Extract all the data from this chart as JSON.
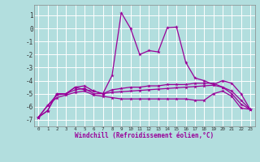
{
  "xlabel": "Windchill (Refroidissement éolien,°C)",
  "background_color": "#b2dede",
  "grid_color": "#ffffff",
  "line_color": "#990099",
  "x_values": [
    0,
    1,
    2,
    3,
    4,
    5,
    6,
    7,
    8,
    9,
    10,
    11,
    12,
    13,
    14,
    15,
    16,
    17,
    18,
    19,
    20,
    21,
    22,
    23
  ],
  "series1": [
    -6.8,
    -6.3,
    -5.0,
    -5.0,
    -4.5,
    -4.4,
    -4.8,
    -5.0,
    -3.6,
    1.2,
    0.0,
    -2.0,
    -1.7,
    -1.8,
    0.05,
    0.1,
    -2.6,
    -3.8,
    -4.0,
    -4.3,
    -4.0,
    -4.2,
    -5.0,
    -6.2
  ],
  "series2": [
    -6.8,
    -6.3,
    -5.0,
    -5.0,
    -4.5,
    -4.7,
    -4.8,
    -5.0,
    -4.7,
    -4.6,
    -4.5,
    -4.5,
    -4.4,
    -4.4,
    -4.3,
    -4.3,
    -4.3,
    -4.2,
    -4.2,
    -4.2,
    -4.5,
    -5.0,
    -5.8,
    -6.2
  ],
  "series3": [
    -6.8,
    -5.9,
    -5.1,
    -5.0,
    -4.7,
    -4.6,
    -5.0,
    -5.0,
    -4.9,
    -4.85,
    -4.8,
    -4.75,
    -4.7,
    -4.65,
    -4.6,
    -4.55,
    -4.5,
    -4.45,
    -4.4,
    -4.35,
    -4.5,
    -4.8,
    -5.5,
    -6.2
  ],
  "series4": [
    -6.8,
    -5.9,
    -5.3,
    -5.1,
    -4.9,
    -4.8,
    -5.1,
    -5.2,
    -5.3,
    -5.4,
    -5.4,
    -5.4,
    -5.4,
    -5.4,
    -5.4,
    -5.4,
    -5.4,
    -5.5,
    -5.5,
    -5.0,
    -4.8,
    -5.2,
    -6.1,
    -6.2
  ],
  "ylim": [
    -7.5,
    1.8
  ],
  "yticks": [
    -7,
    -6,
    -5,
    -4,
    -3,
    -2,
    -1,
    0,
    1
  ],
  "xlim": [
    -0.5,
    23.5
  ]
}
